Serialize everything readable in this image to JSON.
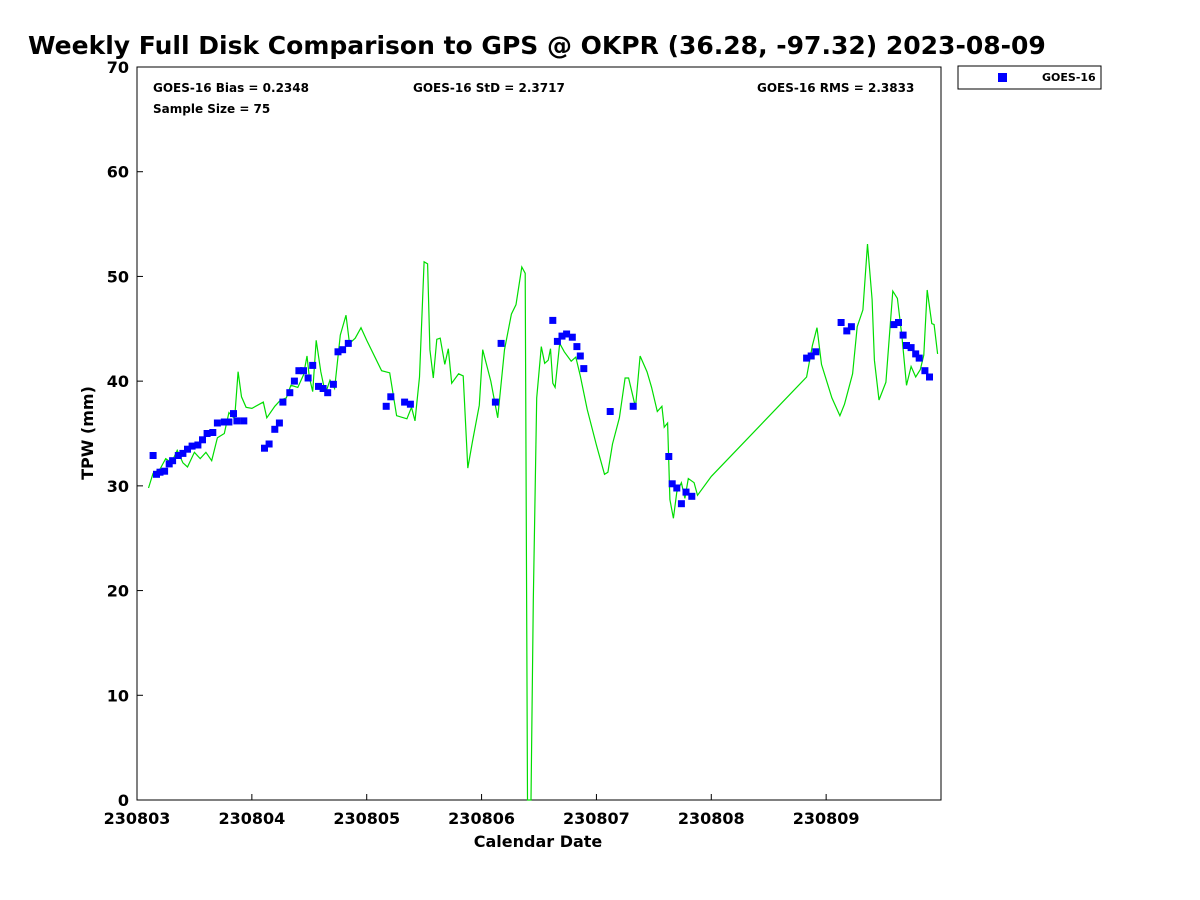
{
  "chart_data": {
    "type": "scatter",
    "title": "Weekly Full Disk Comparison to GPS @ OKPR (36.28, -97.32) 2023-08-09",
    "xlabel": "Calendar Date",
    "ylabel": "TPW (mm)",
    "xlim": [
      230803,
      230810
    ],
    "ylim": [
      0,
      70
    ],
    "x_tick_labels": [
      "230803",
      "230804",
      "230805",
      "230806",
      "230807",
      "230808",
      "230809"
    ],
    "y_tick_labels": [
      "0",
      "10",
      "20",
      "30",
      "40",
      "50",
      "60",
      "70"
    ],
    "grid": false,
    "legend": {
      "position": "top-right-outside",
      "entries": [
        "GOES-16"
      ]
    },
    "stats": {
      "bias": "GOES-16 Bias = 0.2348",
      "std": "GOES-16 StD = 2.3717",
      "rms": "GOES-16 RMS = 2.3833",
      "sample_size": "Sample Size = 75"
    },
    "colors": {
      "goes16": "#0000ff",
      "gps_line": "#00dd00"
    },
    "series": [
      {
        "name": "GOES-16",
        "kind": "scatter",
        "points": [
          [
            230803.14,
            32.9
          ],
          [
            230803.17,
            31.1
          ],
          [
            230803.2,
            31.3
          ],
          [
            230803.24,
            31.4
          ],
          [
            230803.28,
            32.1
          ],
          [
            230803.31,
            32.4
          ],
          [
            230803.36,
            32.9
          ],
          [
            230803.4,
            33.1
          ],
          [
            230803.44,
            33.5
          ],
          [
            230803.48,
            33.8
          ],
          [
            230803.53,
            33.9
          ],
          [
            230803.57,
            34.4
          ],
          [
            230803.61,
            35.0
          ],
          [
            230803.66,
            35.1
          ],
          [
            230803.7,
            36.0
          ],
          [
            230803.76,
            36.1
          ],
          [
            230803.8,
            36.1
          ],
          [
            230803.84,
            36.9
          ],
          [
            230803.87,
            36.2
          ],
          [
            230803.93,
            36.2
          ],
          [
            230804.11,
            33.6
          ],
          [
            230804.15,
            34.0
          ],
          [
            230804.2,
            35.4
          ],
          [
            230804.24,
            36.0
          ],
          [
            230804.27,
            38.0
          ],
          [
            230804.33,
            38.9
          ],
          [
            230804.37,
            40.0
          ],
          [
            230804.41,
            41.0
          ],
          [
            230804.45,
            41.0
          ],
          [
            230804.49,
            40.3
          ],
          [
            230804.53,
            41.5
          ],
          [
            230804.58,
            39.5
          ],
          [
            230804.62,
            39.3
          ],
          [
            230804.66,
            38.9
          ],
          [
            230804.71,
            39.7
          ],
          [
            230804.75,
            42.8
          ],
          [
            230804.79,
            43.0
          ],
          [
            230804.84,
            43.6
          ],
          [
            230805.17,
            37.6
          ],
          [
            230805.21,
            38.5
          ],
          [
            230805.33,
            38.0
          ],
          [
            230805.38,
            37.8
          ],
          [
            230806.12,
            38.0
          ],
          [
            230806.17,
            43.6
          ],
          [
            230806.62,
            45.8
          ],
          [
            230806.66,
            43.8
          ],
          [
            230806.7,
            44.3
          ],
          [
            230806.74,
            44.5
          ],
          [
            230806.79,
            44.2
          ],
          [
            230806.83,
            43.3
          ],
          [
            230806.86,
            42.4
          ],
          [
            230806.89,
            41.2
          ],
          [
            230807.12,
            37.1
          ],
          [
            230807.32,
            37.6
          ],
          [
            230807.63,
            32.8
          ],
          [
            230807.66,
            30.2
          ],
          [
            230807.7,
            29.8
          ],
          [
            230807.74,
            28.3
          ],
          [
            230807.78,
            29.4
          ],
          [
            230807.83,
            29.0
          ],
          [
            230808.83,
            42.2
          ],
          [
            230808.87,
            42.4
          ],
          [
            230808.91,
            42.8
          ],
          [
            230809.13,
            45.6
          ],
          [
            230809.18,
            44.8
          ],
          [
            230809.22,
            45.2
          ],
          [
            230809.59,
            45.4
          ],
          [
            230809.63,
            45.6
          ],
          [
            230809.67,
            44.4
          ],
          [
            230809.7,
            43.4
          ],
          [
            230809.74,
            43.2
          ],
          [
            230809.78,
            42.6
          ],
          [
            230809.81,
            42.2
          ],
          [
            230809.86,
            41.0
          ],
          [
            230809.9,
            40.4
          ]
        ]
      },
      {
        "kind": "line",
        "points": [
          [
            230803.1,
            29.8
          ],
          [
            230803.14,
            31.2
          ],
          [
            230803.2,
            31.6
          ],
          [
            230803.25,
            32.6
          ],
          [
            230803.3,
            32.2
          ],
          [
            230803.35,
            33.4
          ],
          [
            230803.4,
            32.2
          ],
          [
            230803.44,
            31.8
          ],
          [
            230803.5,
            33.2
          ],
          [
            230803.55,
            32.6
          ],
          [
            230803.6,
            33.2
          ],
          [
            230803.65,
            32.4
          ],
          [
            230803.7,
            34.6
          ],
          [
            230803.76,
            35.0
          ],
          [
            230803.8,
            37.0
          ],
          [
            230803.85,
            36.4
          ],
          [
            230803.88,
            40.9
          ],
          [
            230803.91,
            38.5
          ],
          [
            230803.95,
            37.5
          ],
          [
            230804.0,
            37.4
          ],
          [
            230804.1,
            38.0
          ],
          [
            230804.13,
            36.5
          ],
          [
            230804.2,
            37.6
          ],
          [
            230804.25,
            38.2
          ],
          [
            230804.3,
            38.4
          ],
          [
            230804.34,
            39.6
          ],
          [
            230804.4,
            39.4
          ],
          [
            230804.45,
            40.6
          ],
          [
            230804.48,
            42.4
          ],
          [
            230804.5,
            40.4
          ],
          [
            230804.53,
            39.0
          ],
          [
            230804.56,
            43.9
          ],
          [
            230804.6,
            40.9
          ],
          [
            230804.64,
            38.8
          ],
          [
            230804.68,
            40.1
          ],
          [
            230804.72,
            39.3
          ],
          [
            230804.77,
            44.4
          ],
          [
            230804.82,
            46.3
          ],
          [
            230804.85,
            43.6
          ],
          [
            230804.9,
            44.1
          ],
          [
            230804.95,
            45.1
          ],
          [
            230805.0,
            43.9
          ],
          [
            230805.13,
            41.0
          ],
          [
            230805.2,
            40.8
          ],
          [
            230805.26,
            36.7
          ],
          [
            230805.35,
            36.4
          ],
          [
            230805.39,
            37.5
          ],
          [
            230805.42,
            36.2
          ],
          [
            230805.46,
            40.4
          ],
          [
            230805.5,
            51.4
          ],
          [
            230805.53,
            51.2
          ],
          [
            230805.55,
            43.0
          ],
          [
            230805.58,
            40.3
          ],
          [
            230805.61,
            44.0
          ],
          [
            230805.64,
            44.1
          ],
          [
            230805.68,
            41.6
          ],
          [
            230805.71,
            43.1
          ],
          [
            230805.74,
            39.8
          ],
          [
            230805.8,
            40.7
          ],
          [
            230805.84,
            40.5
          ],
          [
            230805.88,
            31.7
          ],
          [
            230805.92,
            34.2
          ],
          [
            230805.98,
            37.7
          ],
          [
            230806.01,
            43.0
          ],
          [
            230806.08,
            40.0
          ],
          [
            230806.14,
            36.5
          ],
          [
            230806.2,
            43.0
          ],
          [
            230806.26,
            46.4
          ],
          [
            230806.3,
            47.3
          ],
          [
            230806.35,
            50.9
          ],
          [
            230806.38,
            50.3
          ],
          [
            230806.4,
            0
          ],
          [
            230806.43,
            0
          ],
          [
            230806.45,
            19.0
          ],
          [
            230806.48,
            38.4
          ],
          [
            230806.52,
            43.3
          ],
          [
            230806.55,
            41.7
          ],
          [
            230806.58,
            42.0
          ],
          [
            230806.6,
            43.1
          ],
          [
            230806.62,
            39.8
          ],
          [
            230806.64,
            39.4
          ],
          [
            230806.68,
            43.6
          ],
          [
            230806.72,
            42.8
          ],
          [
            230806.78,
            41.9
          ],
          [
            230806.82,
            42.3
          ],
          [
            230806.86,
            40.5
          ],
          [
            230806.92,
            37.3
          ],
          [
            230807.0,
            33.9
          ],
          [
            230807.07,
            31.1
          ],
          [
            230807.1,
            31.3
          ],
          [
            230807.14,
            34.0
          ],
          [
            230807.2,
            36.5
          ],
          [
            230807.25,
            40.3
          ],
          [
            230807.28,
            40.3
          ],
          [
            230807.34,
            37.5
          ],
          [
            230807.38,
            42.4
          ],
          [
            230807.44,
            40.9
          ],
          [
            230807.48,
            39.4
          ],
          [
            230807.53,
            37.1
          ],
          [
            230807.57,
            37.6
          ],
          [
            230807.59,
            35.6
          ],
          [
            230807.62,
            36.0
          ],
          [
            230807.64,
            28.7
          ],
          [
            230807.67,
            26.9
          ],
          [
            230807.7,
            29.4
          ],
          [
            230807.74,
            30.3
          ],
          [
            230807.77,
            28.8
          ],
          [
            230807.8,
            30.7
          ],
          [
            230807.85,
            30.3
          ],
          [
            230807.88,
            29.1
          ],
          [
            230808.0,
            30.9
          ],
          [
            230808.83,
            40.4
          ],
          [
            230808.88,
            43.4
          ],
          [
            230808.92,
            45.1
          ],
          [
            230808.96,
            41.6
          ],
          [
            230809.05,
            38.4
          ],
          [
            230809.12,
            36.7
          ],
          [
            230809.16,
            37.8
          ],
          [
            230809.23,
            40.7
          ],
          [
            230809.27,
            45.2
          ],
          [
            230809.32,
            46.8
          ],
          [
            230809.36,
            53.1
          ],
          [
            230809.4,
            47.8
          ],
          [
            230809.42,
            42.0
          ],
          [
            230809.46,
            38.2
          ],
          [
            230809.52,
            39.9
          ],
          [
            230809.58,
            48.6
          ],
          [
            230809.62,
            47.9
          ],
          [
            230809.66,
            44.3
          ],
          [
            230809.7,
            39.6
          ],
          [
            230809.74,
            41.4
          ],
          [
            230809.78,
            40.4
          ],
          [
            230809.82,
            41.1
          ],
          [
            230809.85,
            42.5
          ],
          [
            230809.88,
            48.7
          ],
          [
            230809.92,
            45.5
          ],
          [
            230809.94,
            45.4
          ],
          [
            230809.97,
            42.6
          ]
        ]
      }
    ]
  }
}
